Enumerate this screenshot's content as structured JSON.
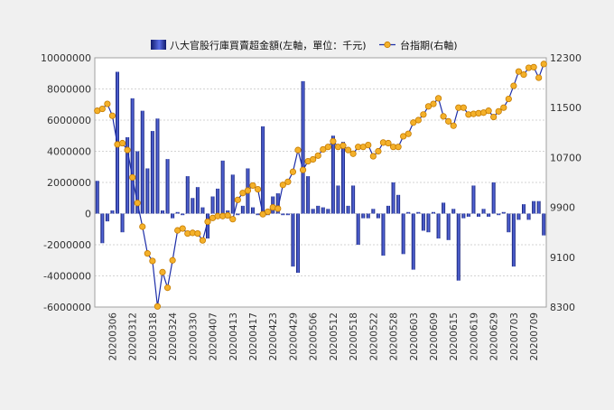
{
  "chart_data": {
    "type": "bar+line",
    "legend": {
      "position": "top-center",
      "bar_label": "八大官股行庫買賣超金額(左軸，單位：千元)",
      "line_label": "台指期(右軸)"
    },
    "colors": {
      "bar_dark": "#101a6b",
      "bar_light": "#5a6ee6",
      "line": "#1d2ea8",
      "marker_fill": "#f4b12a",
      "marker_stroke": "#c57b00",
      "plot_bg": "#ffffff",
      "grid": "#d3d3d3"
    },
    "left_axis": {
      "min": -6000000,
      "max": 10000000,
      "step": 2000000,
      "ticks": [
        "-6000000",
        "-4000000",
        "-2000000",
        "0",
        "2000000",
        "4000000",
        "6000000",
        "8000000",
        "10000000"
      ]
    },
    "right_axis": {
      "min": 8300,
      "max": 12300,
      "step": 800,
      "ticks": [
        "8300",
        "9100",
        "9900",
        "10700",
        "11500",
        "12300"
      ]
    },
    "x_tick_labels": [
      "20200306",
      "20200312",
      "20200318",
      "20200324",
      "20200330",
      "20200407",
      "20200413",
      "20200417",
      "20200423",
      "20200429",
      "20200506",
      "20200512",
      "20200518",
      "20200522",
      "20200528",
      "20200603",
      "20200609",
      "20200615",
      "20200619",
      "20200629",
      "20200703",
      "20200709"
    ],
    "x_tick_every": 4,
    "x_tick_offset": 3,
    "grid": true,
    "series": [
      {
        "name": "八大官股行庫買賣超金額(左軸，單位：千元)",
        "axis": "left",
        "kind": "bar",
        "values": [
          2100000,
          -1900000,
          -500000,
          200000,
          9100000,
          -1200000,
          4900000,
          7400000,
          4000000,
          6600000,
          2900000,
          5300000,
          6100000,
          200000,
          3500000,
          -300000,
          100000,
          -100000,
          2400000,
          1000000,
          1700000,
          400000,
          -1600000,
          1100000,
          1600000,
          3400000,
          200000,
          2500000,
          -100000,
          500000,
          2900000,
          400000,
          -100000,
          5600000,
          -100000,
          1100000,
          1300000,
          -100000,
          -100000,
          -3400000,
          -3800000,
          8500000,
          2400000,
          300000,
          500000,
          400000,
          300000,
          5000000,
          1800000,
          4600000,
          500000,
          1800000,
          -2000000,
          -300000,
          -300000,
          300000,
          -300000,
          -2700000,
          500000,
          2000000,
          1200000,
          -2600000,
          100000,
          -3600000,
          100000,
          -1100000,
          -1200000,
          100000,
          -1600000,
          700000,
          -1700000,
          300000,
          -4300000,
          -300000,
          -200000,
          1800000,
          -200000,
          300000,
          -200000,
          2000000,
          -100000,
          100000,
          -1200000,
          -3400000,
          -400000,
          600000,
          -400000,
          800000,
          800000,
          -1400000
        ]
      },
      {
        "name": "台指期(右軸)",
        "axis": "right",
        "kind": "line",
        "values": [
          11450,
          11480,
          11560,
          11370,
          10910,
          10930,
          10820,
          10380,
          9970,
          9590,
          9160,
          9040,
          8310,
          8860,
          8610,
          9050,
          9530,
          9560,
          9480,
          9490,
          9480,
          9370,
          9670,
          9730,
          9760,
          9760,
          9770,
          9710,
          10020,
          10130,
          10170,
          10250,
          10190,
          9790,
          9830,
          9900,
          9880,
          10260,
          10310,
          10470,
          10820,
          10500,
          10640,
          10670,
          10730,
          10830,
          10870,
          10960,
          10870,
          10890,
          10820,
          10760,
          10870,
          10870,
          10900,
          10720,
          10800,
          10940,
          10930,
          10870,
          10870,
          11040,
          11080,
          11260,
          11300,
          11390,
          11520,
          11560,
          11650,
          11360,
          11280,
          11210,
          11500,
          11500,
          11390,
          11400,
          11410,
          11420,
          11450,
          11350,
          11440,
          11500,
          11640,
          11850,
          12080,
          12030,
          12140,
          12150,
          11980,
          12200
        ]
      }
    ]
  }
}
